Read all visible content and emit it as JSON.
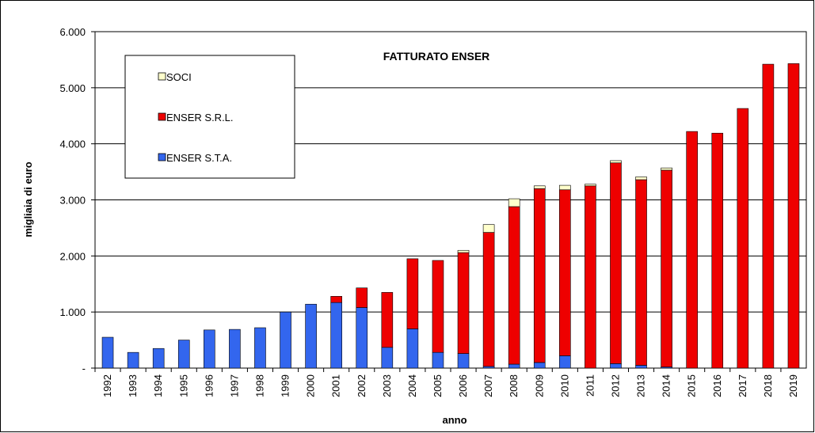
{
  "chart_data": {
    "type": "stacked_bar",
    "title": "FATTURATO ENSER",
    "xlabel": "anno",
    "ylabel": "migliaia di euro",
    "categories": [
      "1992",
      "1993",
      "1994",
      "1995",
      "1996",
      "1997",
      "1998",
      "1999",
      "2000",
      "2001",
      "2002",
      "2003",
      "2004",
      "2005",
      "2006",
      "2007",
      "2008",
      "2009",
      "2010",
      "2011",
      "2012",
      "2013",
      "2014",
      "2015",
      "2016",
      "2017",
      "2018",
      "2019"
    ],
    "series": [
      {
        "name": "ENSER S.T.A.",
        "color": "#3366ee",
        "values": [
          550,
          280,
          350,
          500,
          680,
          690,
          720,
          1000,
          1140,
          1170,
          1080,
          370,
          700,
          280,
          260,
          30,
          70,
          100,
          220,
          0,
          80,
          50,
          20,
          0,
          0,
          0,
          0,
          0
        ]
      },
      {
        "name": "ENSER S.R.L.",
        "color": "#ee0000",
        "values": [
          0,
          0,
          0,
          0,
          0,
          0,
          0,
          0,
          0,
          110,
          350,
          980,
          1250,
          1640,
          1800,
          2390,
          2810,
          3100,
          2960,
          3250,
          3580,
          3310,
          3510,
          4220,
          4190,
          4630,
          5420,
          5430
        ]
      },
      {
        "name": "SOCI",
        "color": "#ffffcc",
        "values": [
          0,
          0,
          0,
          0,
          0,
          0,
          0,
          0,
          0,
          0,
          0,
          0,
          0,
          0,
          40,
          140,
          140,
          50,
          80,
          30,
          40,
          50,
          40,
          0,
          0,
          0,
          0,
          0
        ]
      }
    ],
    "ylim": [
      0,
      6000
    ],
    "yticks": [
      {
        "value": 0,
        "label": "-"
      },
      {
        "value": 1000,
        "label": "1.000"
      },
      {
        "value": 2000,
        "label": "2.000"
      },
      {
        "value": 3000,
        "label": "3.000"
      },
      {
        "value": 4000,
        "label": "4.000"
      },
      {
        "value": 5000,
        "label": "5.000"
      },
      {
        "value": 6000,
        "label": "6.000"
      }
    ],
    "grid": true,
    "legend": "upper left"
  }
}
